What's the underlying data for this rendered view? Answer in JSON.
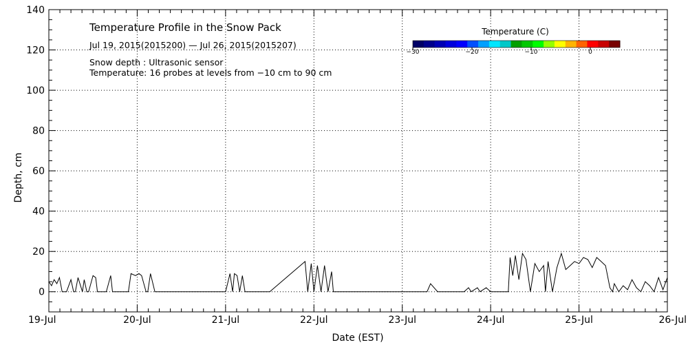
{
  "chart_data": {
    "type": "line",
    "title": "Temperature Profile in the Snow Pack",
    "subtitle": "Jul 19, 2015(2015200) — Jul 26, 2015(2015207)",
    "annotations": [
      "Snow depth : Ultrasonic sensor",
      "Temperature: 16 probes at levels from −10 cm to 90 cm"
    ],
    "xlabel": "Date (EST)",
    "ylabel": "Depth, cm",
    "xlim": [
      0,
      7
    ],
    "ylim": [
      -10,
      140
    ],
    "x_ticks": [
      {
        "x": 0,
        "label": "19-Jul"
      },
      {
        "x": 1,
        "label": "20-Jul"
      },
      {
        "x": 2,
        "label": "21-Jul"
      },
      {
        "x": 3,
        "label": "22-Jul"
      },
      {
        "x": 4,
        "label": "23-Jul"
      },
      {
        "x": 5,
        "label": "24-Jul"
      },
      {
        "x": 6,
        "label": "25-Jul"
      },
      {
        "x": 7,
        "label": "26-Jul"
      }
    ],
    "y_ticks": [
      0,
      20,
      40,
      60,
      80,
      100,
      120,
      140
    ],
    "grid": true,
    "series": [
      {
        "color": "#000000",
        "x": [
          0,
          0.03,
          0.06,
          0.09,
          0.12,
          0.15,
          0.18,
          0.2,
          0.25,
          0.28,
          0.3,
          0.33,
          0.38,
          0.4,
          0.43,
          0.45,
          0.5,
          0.53,
          0.55,
          0.6,
          0.65,
          0.7,
          0.72,
          0.76,
          0.8,
          0.9,
          0.93,
          0.98,
          1.02,
          1.05,
          1.1,
          1.12,
          1.15,
          1.2,
          1.25,
          1.3,
          1.35,
          1.4,
          1.45,
          1.5,
          1.52,
          1.6,
          2.0,
          2.05,
          2.08,
          2.1,
          2.13,
          2.16,
          2.19,
          2.22,
          2.3,
          2.5,
          2.9,
          2.93,
          2.97,
          3.0,
          3.04,
          3.08,
          3.12,
          3.16,
          3.2,
          3.22,
          3.6,
          3.8,
          4.0,
          4.1,
          4.2,
          4.28,
          4.32,
          4.4,
          4.6,
          4.7,
          4.75,
          4.78,
          4.85,
          4.88,
          4.95,
          5.0,
          5.15,
          5.2,
          5.22,
          5.25,
          5.28,
          5.32,
          5.36,
          5.4,
          5.45,
          5.5,
          5.55,
          5.6,
          5.62,
          5.65,
          5.7,
          5.75,
          5.8,
          5.85,
          5.9,
          5.95,
          6.0,
          6.05,
          6.1,
          6.15,
          6.2,
          6.25,
          6.3,
          6.35,
          6.38,
          6.4,
          6.45,
          6.5,
          6.55,
          6.6,
          6.65,
          6.7,
          6.75,
          6.8,
          6.85,
          6.9,
          6.95,
          7.0
        ],
        "y": [
          5,
          3,
          6,
          4,
          7,
          0,
          0,
          0,
          6,
          0,
          0,
          7,
          0,
          6,
          0,
          0,
          8,
          7,
          0,
          0,
          0,
          8,
          0,
          0,
          0,
          0,
          9,
          8,
          9,
          8,
          0,
          0,
          9,
          0,
          0,
          0,
          0,
          0,
          0,
          0,
          0,
          0,
          0,
          9,
          0,
          9,
          8,
          0,
          8,
          0,
          0,
          0,
          15,
          0,
          14,
          0,
          13,
          0,
          13,
          0,
          10,
          0,
          0,
          0,
          0,
          0,
          0,
          0,
          4,
          0,
          0,
          0,
          2,
          0,
          2,
          0,
          2,
          0,
          0,
          0,
          17,
          8,
          18,
          6,
          19,
          16,
          0,
          14,
          10,
          13,
          0,
          15,
          0,
          12,
          19,
          11,
          13,
          15,
          14,
          17,
          16,
          12,
          17,
          15,
          13,
          2,
          0,
          4,
          0,
          3,
          1,
          6,
          2,
          0,
          5,
          3,
          0,
          7,
          1,
          7
        ]
      }
    ],
    "colorbar": {
      "title": "Temperature (C)",
      "range": [
        -30,
        5
      ],
      "tick_values": [
        -30,
        -20,
        -10,
        0
      ],
      "tick_labels": [
        "−30",
        "−20",
        "−10",
        "0"
      ],
      "colors": [
        "#000066",
        "#00008c",
        "#0000b4",
        "#0000dc",
        "#0000ff",
        "#0050ff",
        "#00a0ff",
        "#00e6ff",
        "#00c8c8",
        "#00a000",
        "#00c800",
        "#00ff00",
        "#96ff00",
        "#ffff00",
        "#ffb400",
        "#ff6400",
        "#ff0000",
        "#c80000",
        "#780000"
      ]
    }
  }
}
